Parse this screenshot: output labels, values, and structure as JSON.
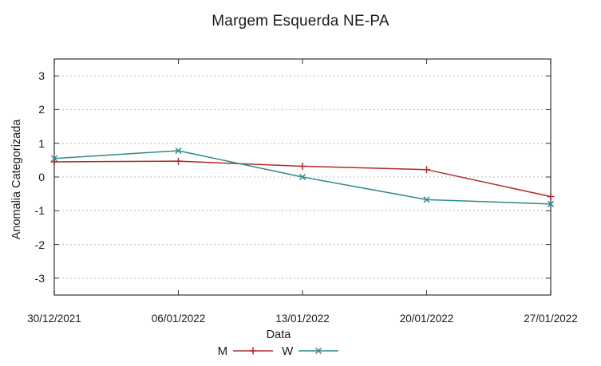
{
  "chart_data": {
    "type": "line",
    "title": "Margem Esquerda NE-PA",
    "xlabel": "Data",
    "ylabel": "Anomalia Categorizada",
    "categories": [
      "30/12/2021",
      "06/01/2022",
      "13/01/2022",
      "20/01/2022",
      "27/01/2022"
    ],
    "series": [
      {
        "name": "M",
        "marker": "plus",
        "color": "#b12a2a",
        "values": [
          0.45,
          0.47,
          0.32,
          0.22,
          -0.58
        ]
      },
      {
        "name": "W",
        "marker": "cross",
        "color": "#2e8b8b",
        "values": [
          0.55,
          0.78,
          0.0,
          -0.67,
          -0.8
        ]
      }
    ],
    "ylim": [
      -3.5,
      3.5
    ],
    "yticks": [
      3,
      2,
      1,
      0,
      -1,
      -2,
      -3
    ],
    "grid": "horizontal-dotted",
    "legend_position": "bottom-center",
    "colors": {
      "grid": "#b8b8b8",
      "border": "#5a5a5a",
      "tick": "#333333",
      "text": "#1a1a1a",
      "background": "#ffffff"
    }
  }
}
